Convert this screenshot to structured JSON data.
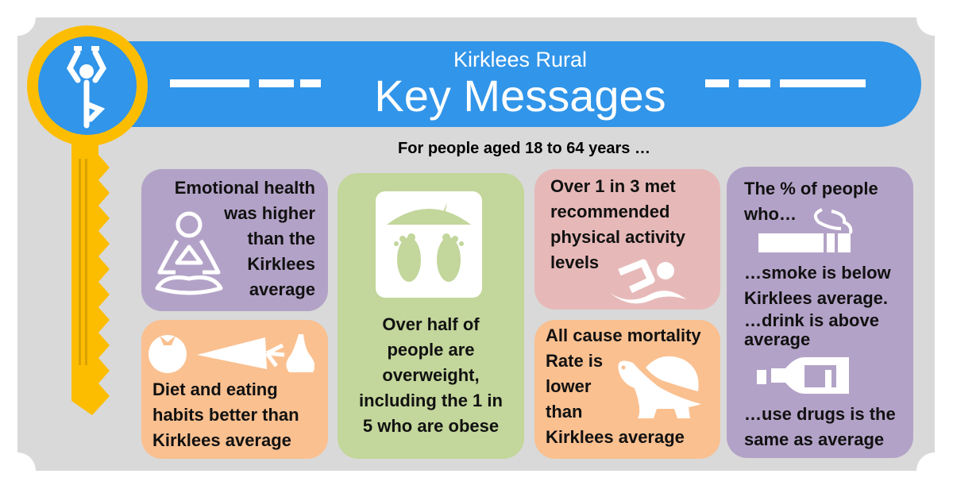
{
  "header": {
    "subtitle": "Kirklees Rural",
    "title": "Key Messages"
  },
  "intro": "For people aged 18 to 64 years …",
  "colors": {
    "banner": "#3195e9",
    "key": "#fcbd00",
    "purple": "#b3a2c7",
    "green": "#c3d69b",
    "pink": "#e6b9b8",
    "orange": "#fac090",
    "panel": "#d9d9d9"
  },
  "cards": {
    "emotional": {
      "icon": "meditation-icon",
      "text": "Emotional health\nwas higher\nthan the\nKirklees\naverage"
    },
    "diet": {
      "icon": "fruit-vegetable-icon",
      "text": "Diet and eating\nhabits better than\nKirklees average"
    },
    "weight": {
      "icon": "weighing-scale-icon",
      "text": "Over half of\npeople are\noverweight,\nincluding the 1 in\n5 who are obese"
    },
    "activity": {
      "icon": "swimmer-icon",
      "text": "Over 1 in 3 met\nrecommended\nphysical activity\nlevels"
    },
    "mortality": {
      "icon": "tortoise-icon",
      "line1": "All cause mortality",
      "text": "Rate is\nlower\nthan\nKirklees average"
    },
    "lifestyle": {
      "heading": "The % of people\nwho…",
      "smoke": "…smoke is below\nKirklees average.",
      "drink": "…drink is above\naverage",
      "drugs": "…use drugs is the\nsame as average",
      "icons": [
        "cigarette-icon",
        "bottle-icon"
      ]
    }
  }
}
